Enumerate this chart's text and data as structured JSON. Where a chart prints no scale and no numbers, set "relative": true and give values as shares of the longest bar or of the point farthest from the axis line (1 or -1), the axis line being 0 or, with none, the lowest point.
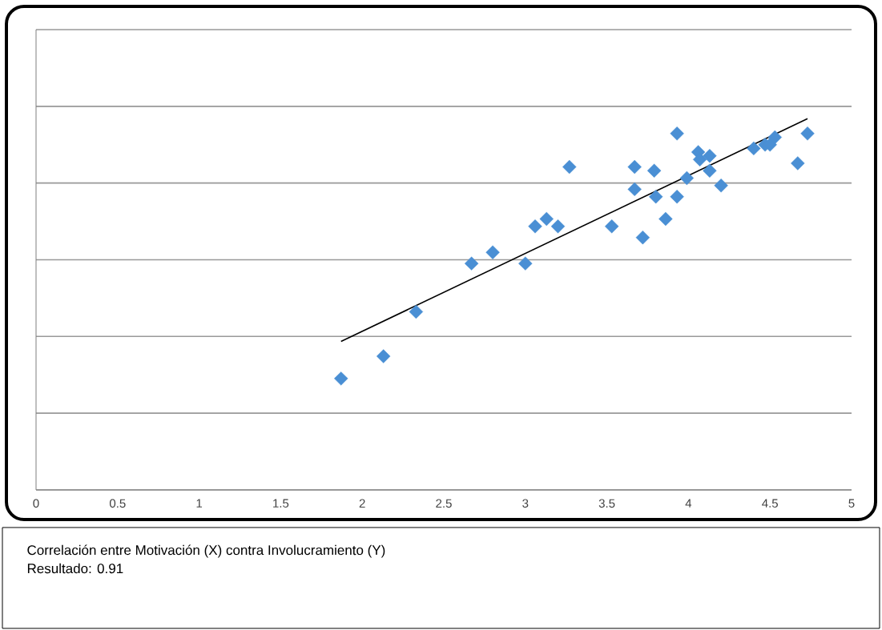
{
  "chart_data": {
    "type": "scatter",
    "relative": true,
    "grid": "y",
    "marker": "diamond",
    "xlim": [
      0,
      5
    ],
    "xticks": [
      0,
      0.5,
      1,
      1.5,
      2,
      2.5,
      3,
      3.5,
      4,
      4.5,
      5
    ],
    "annotations": [
      "Correlación entre Motivación (X) contra Involucramiento (Y)",
      "Resultado: 0.91"
    ],
    "series": [
      {
        "color": "#4a8fd4",
        "x": [
          1.87,
          2.13,
          2.33,
          2.67,
          2.8,
          3.0,
          3.06,
          3.13,
          3.2,
          3.27,
          3.53,
          3.67,
          3.67,
          3.72,
          3.79,
          3.8,
          3.86,
          3.93,
          3.93,
          3.99,
          4.06,
          4.07,
          4.13,
          4.13,
          4.2,
          4.4,
          4.47,
          4.5,
          4.53,
          4.67,
          4.73
        ],
        "values": [
          0.3,
          0.36,
          0.48,
          0.61,
          0.64,
          0.61,
          0.71,
          0.73,
          0.71,
          0.87,
          0.71,
          0.81,
          0.87,
          0.68,
          0.86,
          0.79,
          0.73,
          0.79,
          0.96,
          0.84,
          0.91,
          0.89,
          0.9,
          0.86,
          0.82,
          0.92,
          0.93,
          0.93,
          0.95,
          0.88,
          0.96
        ]
      },
      {
        "type": "line",
        "color": "#000000",
        "marker": "none",
        "line_style": "solid",
        "x": [
          1.87,
          4.73
        ],
        "values": [
          0.4,
          1.0
        ]
      }
    ]
  }
}
